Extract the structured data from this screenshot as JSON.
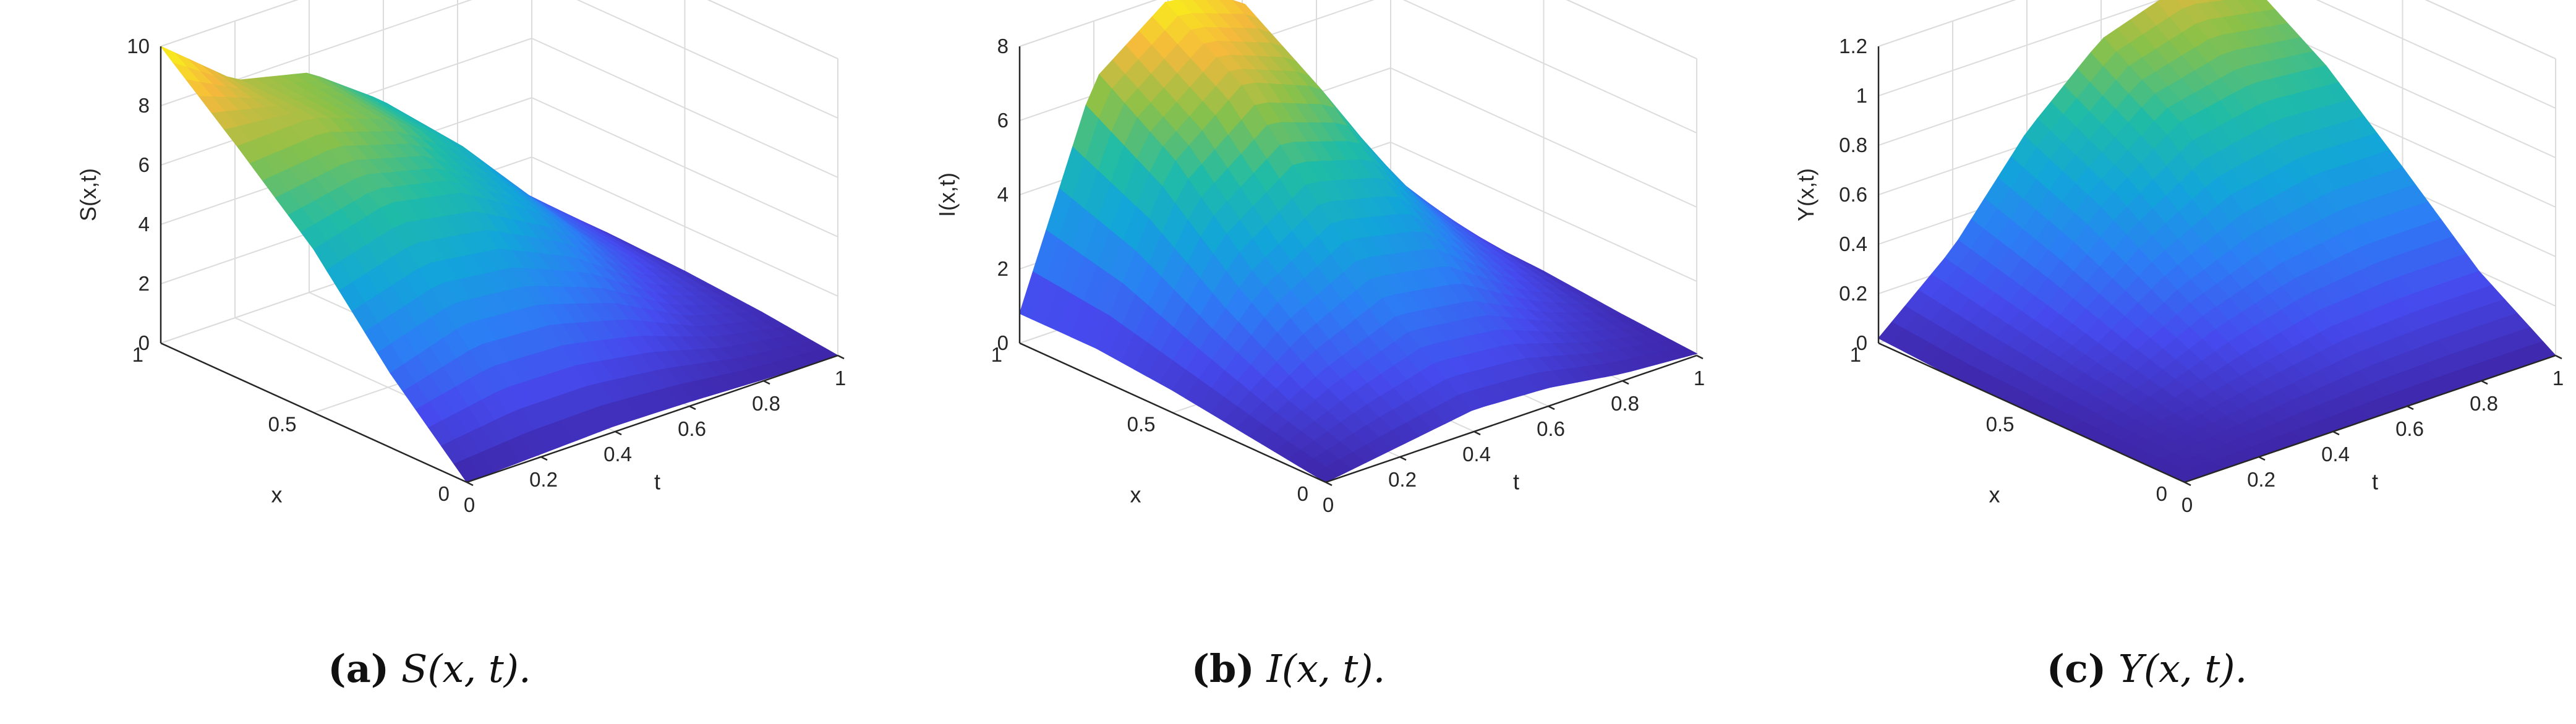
{
  "chart_data": [
    {
      "type": "surface",
      "caption_label": "(a)",
      "caption_text": "S(x, t).",
      "xlabel": "x",
      "ylabel": "t",
      "zlabel": "S(x,t)",
      "xlim": [
        0,
        1
      ],
      "tlim": [
        0,
        1
      ],
      "zlim": [
        0,
        10
      ],
      "x_ticks": [
        "0",
        "0.5",
        "1"
      ],
      "t_ticks": [
        "0",
        "0.2",
        "0.4",
        "0.6",
        "0.8",
        "1"
      ],
      "z_ticks": [
        "0",
        "2",
        "4",
        "6",
        "8",
        "10"
      ],
      "x": [
        0,
        0.25,
        0.5,
        0.75,
        1
      ],
      "t": [
        0,
        0.2,
        0.4,
        0.6,
        0.8,
        1
      ],
      "z": [
        [
          0.0,
          0.1,
          0.2,
          0.15,
          0.05,
          0.0
        ],
        [
          2.5,
          3.3,
          3.1,
          2.3,
          1.0,
          0.3
        ],
        [
          5.5,
          6.2,
          5.7,
          4.2,
          2.0,
          0.5
        ],
        [
          7.8,
          7.9,
          7.0,
          5.3,
          2.6,
          0.6
        ],
        [
          10.0,
          8.0,
          7.4,
          5.6,
          2.8,
          0.6
        ]
      ],
      "grid": true,
      "colormap": "parula"
    },
    {
      "type": "surface",
      "caption_label": "(b)",
      "caption_text": "I(x, t).",
      "xlabel": "x",
      "ylabel": "t",
      "zlabel": "I(x,t)",
      "xlim": [
        0,
        1
      ],
      "tlim": [
        0,
        1
      ],
      "zlim": [
        0,
        8
      ],
      "x_ticks": [
        "0",
        "0.5",
        "1"
      ],
      "t_ticks": [
        "0",
        "0.2",
        "0.4",
        "0.6",
        "0.8",
        "1"
      ],
      "z_ticks": [
        "0",
        "2",
        "4",
        "6",
        "8"
      ],
      "x": [
        0,
        0.25,
        0.5,
        0.75,
        1
      ],
      "t": [
        0,
        0.2,
        0.4,
        0.6,
        0.8,
        1
      ],
      "z": [
        [
          0.0,
          0.3,
          0.6,
          0.5,
          0.2,
          0.05
        ],
        [
          0.3,
          1.4,
          2.2,
          1.9,
          0.9,
          0.2
        ],
        [
          0.6,
          3.0,
          4.3,
          3.8,
          1.8,
          0.4
        ],
        [
          0.8,
          5.0,
          6.6,
          5.8,
          2.7,
          0.5
        ],
        [
          0.8,
          6.4,
          7.9,
          7.2,
          3.3,
          0.6
        ]
      ],
      "grid": true,
      "colormap": "parula"
    },
    {
      "type": "surface",
      "caption_label": "(c)",
      "caption_text": "Y(x, t).",
      "xlabel": "x",
      "ylabel": "t",
      "zlabel": "Y(x,t)",
      "xlim": [
        0,
        1
      ],
      "tlim": [
        0,
        1
      ],
      "zlim": [
        0,
        1.2
      ],
      "x_ticks": [
        "0",
        "0.5",
        "1"
      ],
      "t_ticks": [
        "0",
        "0.2",
        "0.4",
        "0.6",
        "0.8",
        "1"
      ],
      "z_ticks": [
        "0",
        "0.2",
        "0.4",
        "0.6",
        "0.8",
        "1",
        "1.2"
      ],
      "x": [
        0,
        0.25,
        0.5,
        0.75,
        1
      ],
      "t": [
        0,
        0.2,
        0.4,
        0.6,
        0.8,
        1
      ],
      "z": [
        [
          0.0,
          0.0,
          0.0,
          0.0,
          0.0,
          0.0
        ],
        [
          0.0,
          0.05,
          0.12,
          0.18,
          0.2,
          0.2
        ],
        [
          0.0,
          0.12,
          0.3,
          0.42,
          0.48,
          0.48
        ],
        [
          0.0,
          0.2,
          0.5,
          0.72,
          0.78,
          0.75
        ],
        [
          0.02,
          0.28,
          0.65,
          0.92,
          1.02,
          0.95
        ]
      ],
      "grid": true,
      "colormap": "parula"
    }
  ]
}
